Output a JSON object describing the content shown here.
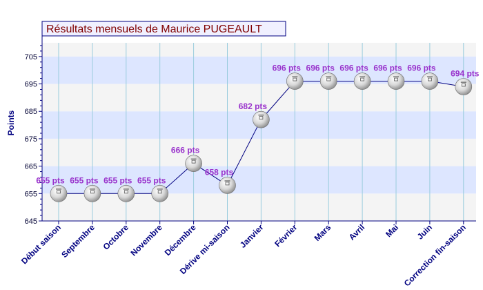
{
  "chart_data": {
    "type": "line",
    "title": "Résultats mensuels de Maurice PUGEAULT",
    "ylabel": "Points",
    "xlabel": "",
    "ylim": [
      645,
      710
    ],
    "yticks": [
      645,
      655,
      665,
      675,
      685,
      695,
      705
    ],
    "grid": true,
    "categories": [
      "Début saison",
      "Septembre",
      "Octobre",
      "Novembre",
      "Décembre",
      "Dérive mi-saison",
      "Janvier",
      "Février",
      "Mars",
      "Avril",
      "Mai",
      "Juin",
      "Correction fin-saison"
    ],
    "series": [
      {
        "values": [
          655,
          655,
          655,
          655,
          666,
          658,
          682,
          696,
          696,
          696,
          696,
          696,
          694
        ],
        "labels": [
          "655 pts",
          "655 pts",
          "655 pts",
          "655 pts",
          "666 pts",
          "658 pts",
          "682 pts",
          "696 pts",
          "696 pts",
          "696 pts",
          "696 pts",
          "696 pts",
          "694 pts"
        ]
      }
    ],
    "colors": {
      "band_a": "#dde6ff",
      "band_b": "#f4f4f4",
      "line": "#000080",
      "axis": "#000080",
      "vgrid": "#99ccdd",
      "label": "#9933cc",
      "title": "#800000"
    },
    "marker_icon": "ping-pong-ball-icon"
  }
}
